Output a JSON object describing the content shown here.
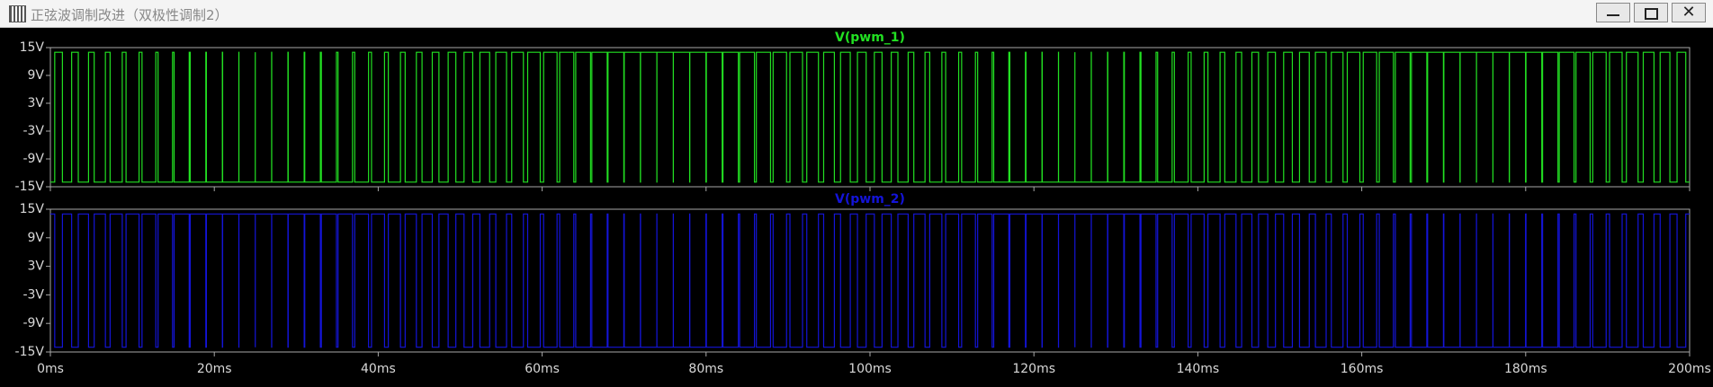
{
  "window": {
    "title": "正弦波调制改进（双极性调制2）"
  },
  "chart_data": {
    "type": "line",
    "layout": "stacked",
    "step": true,
    "grid": false,
    "xlim": [
      0,
      200
    ],
    "xticks": [
      {
        "value": 0,
        "label": "0ms"
      },
      {
        "value": 20,
        "label": "20ms"
      },
      {
        "value": 40,
        "label": "40ms"
      },
      {
        "value": 60,
        "label": "60ms"
      },
      {
        "value": 80,
        "label": "80ms"
      },
      {
        "value": 100,
        "label": "100ms"
      },
      {
        "value": 120,
        "label": "120ms"
      },
      {
        "value": 140,
        "label": "140ms"
      },
      {
        "value": 160,
        "label": "160ms"
      },
      {
        "value": 180,
        "label": "180ms"
      },
      {
        "value": 200,
        "label": "200ms"
      }
    ],
    "ylim": [
      -15,
      15
    ],
    "yticks": [
      {
        "value": -15,
        "label": "-15V"
      },
      {
        "value": -9,
        "label": "-9V"
      },
      {
        "value": -3,
        "label": "-3V"
      },
      {
        "value": 3,
        "label": "3V"
      },
      {
        "value": 9,
        "label": "9V"
      },
      {
        "value": 15,
        "label": "15V"
      }
    ],
    "x": [
      0,
      0.531,
      1.469,
      2.594,
      3.406,
      4.655,
      5.345,
      6.713,
      7.287,
      8.768,
      9.232,
      10.819,
      11.181,
      12.864,
      13.136,
      14.904,
      15.096,
      16.938,
      17.062,
      18.965,
      19.035,
      20.984,
      21.016,
      22.996,
      23.004,
      25,
      25,
      26.996,
      27.004,
      28.984,
      29.016,
      30.965,
      31.035,
      32.938,
      33.062,
      34.904,
      35.096,
      36.864,
      37.136,
      38.819,
      39.181,
      40.768,
      41.232,
      42.713,
      43.287,
      44.655,
      45.345,
      46.594,
      47.406,
      48.531,
      49.469,
      50.469,
      51.531,
      52.406,
      53.594,
      54.345,
      55.655,
      56.287,
      57.713,
      58.232,
      59.768,
      60.181,
      61.819,
      62.136,
      63.864,
      64.096,
      65.904,
      66.062,
      67.938,
      68.035,
      69.965,
      70.016,
      71.984,
      72.004,
      73.996,
      74,
      76,
      76.004,
      77.996,
      78.016,
      79.984,
      80.035,
      81.965,
      82.062,
      83.938,
      84.096,
      85.904,
      86.136,
      87.864,
      88.181,
      89.819,
      90.232,
      91.768,
      92.287,
      93.713,
      94.345,
      95.655,
      96.406,
      97.594,
      98.469,
      99.531,
      100.531,
      101.469,
      102.594,
      103.406,
      104.655,
      105.345,
      106.713,
      107.287,
      108.768,
      109.232,
      110.819,
      111.181,
      112.864,
      113.136,
      114.904,
      115.096,
      116.938,
      117.062,
      118.965,
      119.035,
      120.984,
      121.016,
      122.996,
      123.004,
      125,
      125,
      126.996,
      127.004,
      128.984,
      129.016,
      130.965,
      131.035,
      132.938,
      133.062,
      134.904,
      135.096,
      136.864,
      137.136,
      138.819,
      139.181,
      140.768,
      141.232,
      142.713,
      143.287,
      144.655,
      145.345,
      146.594,
      147.406,
      148.531,
      149.469,
      150.469,
      151.531,
      152.406,
      153.594,
      154.345,
      155.655,
      156.287,
      157.713,
      158.232,
      159.768,
      160.181,
      161.819,
      162.136,
      163.864,
      164.096,
      165.904,
      166.062,
      167.938,
      168.035,
      169.965,
      170.016,
      171.984,
      172.004,
      173.996,
      174,
      176,
      176.004,
      177.996,
      178.016,
      179.984,
      180.035,
      181.965,
      182.062,
      183.938,
      184.096,
      185.904,
      186.136,
      187.864,
      188.181,
      189.819,
      190.232,
      191.768,
      192.287,
      193.713,
      194.345,
      195.655,
      196.406,
      197.594,
      198.469,
      199.531
    ],
    "series": [
      {
        "name": "V(pwm_1)",
        "color": "#22e022",
        "values": [
          -14,
          14,
          -14,
          14,
          -14,
          14,
          -14,
          14,
          -14,
          14,
          -14,
          14,
          -14,
          14,
          -14,
          14,
          -14,
          14,
          -14,
          14,
          -14,
          14,
          -14,
          14,
          -14,
          14,
          -14,
          14,
          -14,
          14,
          -14,
          14,
          -14,
          14,
          -14,
          14,
          -14,
          14,
          -14,
          14,
          -14,
          14,
          -14,
          14,
          -14,
          14,
          -14,
          14,
          -14,
          14,
          -14,
          14,
          -14,
          14,
          -14,
          14,
          -14,
          14,
          -14,
          14,
          -14,
          14,
          -14,
          14,
          -14,
          14,
          -14,
          14,
          -14,
          14,
          -14,
          14,
          -14,
          14,
          -14,
          14,
          -14,
          14,
          -14,
          14,
          -14,
          14,
          -14,
          14,
          -14,
          14,
          -14,
          14,
          -14,
          14,
          -14,
          14,
          -14,
          14,
          -14,
          14,
          -14,
          14,
          -14,
          14,
          -14,
          14,
          -14,
          14,
          -14,
          14,
          -14,
          14,
          -14,
          14,
          -14,
          14,
          -14,
          14,
          -14,
          14,
          -14,
          14,
          -14,
          14,
          -14,
          14,
          -14,
          14,
          -14,
          14,
          -14,
          14,
          -14,
          14,
          -14,
          14,
          -14,
          14,
          -14,
          14,
          -14,
          14,
          -14,
          14,
          -14,
          14,
          -14,
          14,
          -14,
          14,
          -14,
          14,
          -14,
          14,
          -14,
          14,
          -14,
          14,
          -14,
          14,
          -14,
          14,
          -14,
          14,
          -14,
          14,
          -14,
          14,
          -14,
          14,
          -14,
          14,
          -14,
          14,
          -14,
          14,
          -14,
          14,
          -14,
          14,
          -14,
          14,
          -14,
          14,
          -14,
          14,
          -14,
          14,
          -14,
          14,
          -14,
          14,
          -14,
          14,
          -14,
          14,
          -14,
          14,
          -14,
          14,
          -14,
          14,
          -14,
          14,
          -14
        ]
      },
      {
        "name": "V(pwm_2)",
        "color": "#1414d8",
        "values": [
          14,
          -14,
          14,
          -14,
          14,
          -14,
          14,
          -14,
          14,
          -14,
          14,
          -14,
          14,
          -14,
          14,
          -14,
          14,
          -14,
          14,
          -14,
          14,
          -14,
          14,
          -14,
          14,
          -14,
          14,
          -14,
          14,
          -14,
          14,
          -14,
          14,
          -14,
          14,
          -14,
          14,
          -14,
          14,
          -14,
          14,
          -14,
          14,
          -14,
          14,
          -14,
          14,
          -14,
          14,
          -14,
          14,
          -14,
          14,
          -14,
          14,
          -14,
          14,
          -14,
          14,
          -14,
          14,
          -14,
          14,
          -14,
          14,
          -14,
          14,
          -14,
          14,
          -14,
          14,
          -14,
          14,
          -14,
          14,
          -14,
          14,
          -14,
          14,
          -14,
          14,
          -14,
          14,
          -14,
          14,
          -14,
          14,
          -14,
          14,
          -14,
          14,
          -14,
          14,
          -14,
          14,
          -14,
          14,
          -14,
          14,
          -14,
          14,
          -14,
          14,
          -14,
          14,
          -14,
          14,
          -14,
          14,
          -14,
          14,
          -14,
          14,
          -14,
          14,
          -14,
          14,
          -14,
          14,
          -14,
          14,
          -14,
          14,
          -14,
          14,
          -14,
          14,
          -14,
          14,
          -14,
          14,
          -14,
          14,
          -14,
          14,
          -14,
          14,
          -14,
          14,
          -14,
          14,
          -14,
          14,
          -14,
          14,
          -14,
          14,
          -14,
          14,
          -14,
          14,
          -14,
          14,
          -14,
          14,
          -14,
          14,
          -14,
          14,
          -14,
          14,
          -14,
          14,
          -14,
          14,
          -14,
          14,
          -14,
          14,
          -14,
          14,
          -14,
          14,
          -14,
          14,
          -14,
          14,
          -14,
          14,
          -14,
          14,
          -14,
          14,
          -14,
          14,
          -14,
          14,
          -14,
          14,
          -14,
          14,
          -14,
          14,
          -14,
          14,
          -14,
          14,
          -14,
          14,
          -14,
          14
        ]
      }
    ]
  }
}
